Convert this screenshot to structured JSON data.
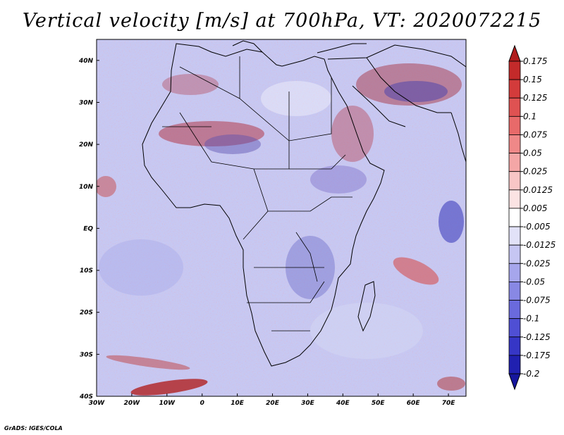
{
  "title": "Vertical velocity [m/s] at 700hPa, VT: 2020072215",
  "credit": "GrADS: IGES/COLA",
  "map": {
    "lon_labels": [
      "30W",
      "20W",
      "10W",
      "0",
      "10E",
      "20E",
      "30E",
      "40E",
      "50E",
      "60E",
      "70E"
    ],
    "lon_values": [
      -30,
      -20,
      -10,
      0,
      10,
      20,
      30,
      40,
      50,
      60,
      70
    ],
    "lat_labels": [
      "40N",
      "30N",
      "20N",
      "10N",
      "EQ",
      "10S",
      "20S",
      "30S",
      "40S"
    ],
    "lat_values": [
      40,
      30,
      20,
      10,
      0,
      -10,
      -20,
      -30,
      -40
    ],
    "lon_range": [
      -30,
      75
    ],
    "lat_range": [
      -40,
      45
    ]
  },
  "colorbar": {
    "labels": [
      "0.175",
      "0.15",
      "0.125",
      "0.1",
      "0.075",
      "0.05",
      "0.025",
      "0.0125",
      "0.005",
      "-0.005",
      "-0.0125",
      "-0.025",
      "-0.05",
      "-0.075",
      "-0.1",
      "-0.125",
      "-0.175",
      "-0.2"
    ],
    "colors": [
      "#b01c1c",
      "#c32a2a",
      "#d33b3b",
      "#df5252",
      "#e86a6a",
      "#ef8888",
      "#f4a6a6",
      "#f8c6c6",
      "#fbe3e3",
      "#ffffff",
      "#e2e2f8",
      "#c6c6f3",
      "#a6a6ec",
      "#8888e4",
      "#6a6add",
      "#4f4fd4",
      "#3636c6",
      "#2020b0",
      "#16169e"
    ]
  }
}
